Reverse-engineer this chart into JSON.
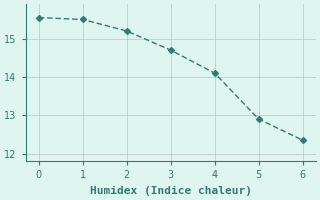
{
  "x": [
    0,
    1,
    2,
    3,
    4,
    5,
    6
  ],
  "y": [
    15.55,
    15.5,
    15.2,
    14.7,
    14.1,
    12.9,
    12.35
  ],
  "line_color": "#2e7d72",
  "marker": "D",
  "marker_size": 3,
  "background_color": "#dff5f0",
  "grid_color": "#c0c0c0",
  "grid_color_major": "#b0b0b0",
  "xlabel": "Humidex (Indice chaleur)",
  "xlim": [
    -0.3,
    6.3
  ],
  "ylim": [
    11.8,
    15.9
  ],
  "xticks": [
    0,
    1,
    2,
    3,
    4,
    5,
    6
  ],
  "yticks": [
    12,
    13,
    14,
    15
  ],
  "tick_color": "#2e7d72",
  "axis_color": "#2e7d72",
  "font_color": "#2e7d72",
  "xlabel_fontsize": 8,
  "tick_fontsize": 7
}
